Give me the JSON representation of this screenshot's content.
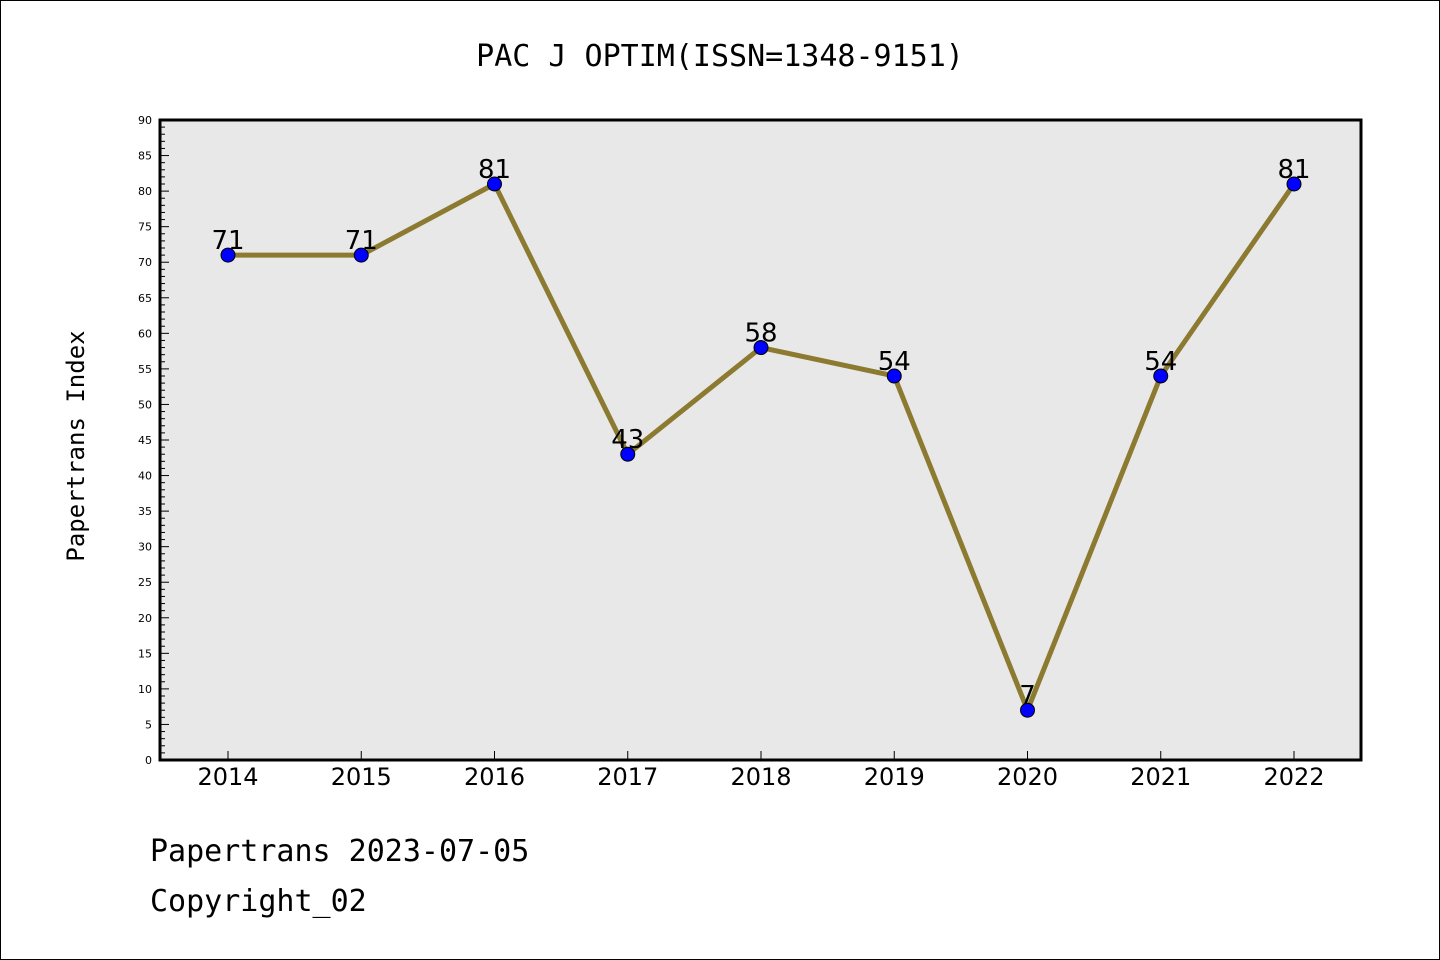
{
  "chart_data": {
    "type": "line",
    "title": "PAC J OPTIM(ISSN=1348-9151)",
    "ylabel": "Papertrans Index",
    "xlabel": "",
    "categories": [
      "2014",
      "2015",
      "2016",
      "2017",
      "2018",
      "2019",
      "2020",
      "2021",
      "2022"
    ],
    "series": [
      {
        "values": [
          71,
          71,
          81,
          43,
          58,
          54,
          7,
          54,
          81
        ]
      }
    ],
    "ylim": [
      0,
      90
    ],
    "ytick_step": 5,
    "grid": false,
    "data_labels": true,
    "colors": {
      "line": "#8b7a30",
      "marker": "#0000ff",
      "plot_bg": "#e8e8e8"
    }
  },
  "footer": {
    "line1": "Papertrans 2023-07-05",
    "line2": "Copyright_02"
  }
}
